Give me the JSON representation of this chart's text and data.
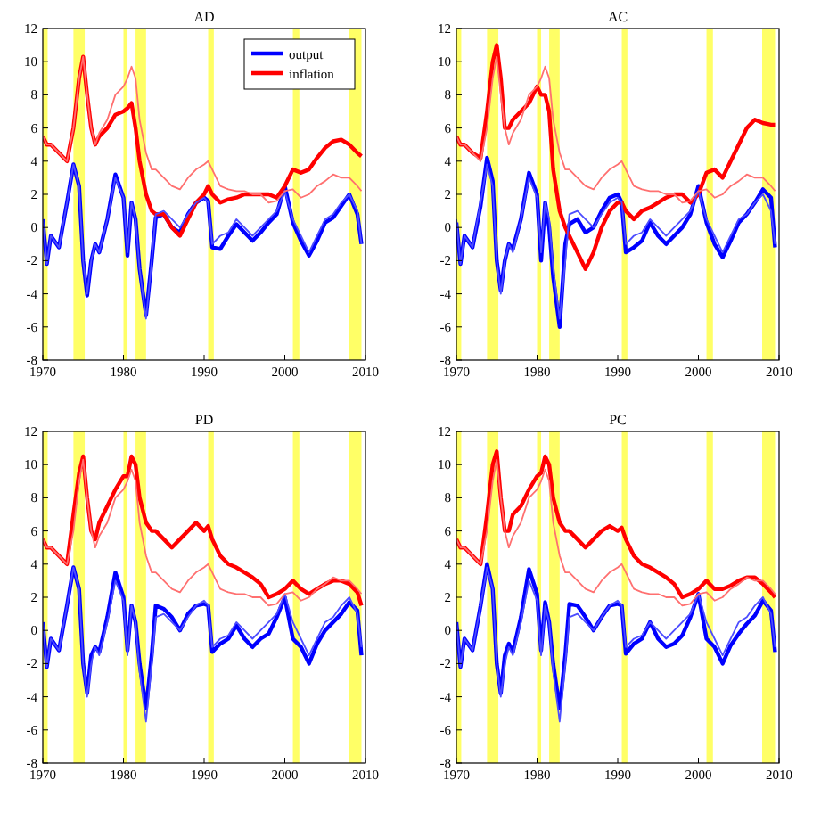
{
  "chart_data": [
    {
      "type": "line",
      "title": "AD",
      "legend": "top right",
      "xlim": [
        1970,
        2010
      ],
      "ylim": [
        -8,
        12
      ],
      "xticks": [
        1970,
        1980,
        1990,
        2000,
        2010
      ],
      "yticks": [
        -8,
        -6,
        -4,
        -2,
        0,
        2,
        4,
        6,
        8,
        10,
        12
      ],
      "x": [
        1970,
        1970.5,
        1971,
        1972,
        1973,
        1973.8,
        1974.5,
        1975,
        1975.5,
        1976,
        1976.5,
        1977,
        1978,
        1979,
        1980,
        1980.5,
        1981,
        1981.5,
        1982,
        1982.8,
        1983.5,
        1984,
        1985,
        1986,
        1987,
        1988,
        1989,
        1990,
        1990.5,
        1991,
        1992,
        1993,
        1994,
        1995,
        1996,
        1997,
        1998,
        1999,
        2000,
        2001,
        2002,
        2003,
        2004,
        2005,
        2006,
        2007,
        2008,
        2009,
        2009.5
      ],
      "bands": [
        {
          "axis": "x",
          "from": 1970,
          "to": 1970.6,
          "color": "#ffff66"
        },
        {
          "axis": "x",
          "from": 1973.8,
          "to": 1975.2,
          "color": "#ffff66"
        },
        {
          "axis": "x",
          "from": 1980,
          "to": 1980.5,
          "color": "#ffff66"
        },
        {
          "axis": "x",
          "from": 1981.5,
          "to": 1982.8,
          "color": "#ffff66"
        },
        {
          "axis": "x",
          "from": 1990.5,
          "to": 1991.2,
          "color": "#ffff66"
        },
        {
          "axis": "x",
          "from": 2001,
          "to": 2001.8,
          "color": "#ffff66"
        },
        {
          "axis": "x",
          "from": 2007.9,
          "to": 2009.5,
          "color": "#ffff66"
        }
      ],
      "series": [
        {
          "color": "#4d4dff",
          "values": [
            0.5,
            -2.2,
            -0.5,
            -1.2,
            1.5,
            3.8,
            2.5,
            -2,
            -4,
            -2,
            -1,
            -1.5,
            0.5,
            3,
            1.8,
            -1.5,
            1.5,
            0.5,
            -2.5,
            -5.5,
            -2,
            0.8,
            1,
            0.5,
            0,
            0.8,
            1.5,
            1.8,
            1.5,
            -1,
            -0.5,
            -0.3,
            0.5,
            0,
            -0.5,
            0,
            0.5,
            1,
            2.2,
            0.5,
            -0.5,
            -1.5,
            -0.5,
            0.5,
            0.8,
            1.5,
            2,
            1,
            -1
          ]
        },
        {
          "color": "#ff7070",
          "values": [
            5.5,
            5,
            5,
            4.5,
            4,
            6,
            9,
            10.3,
            8,
            6,
            5,
            5.7,
            6.5,
            8,
            8.5,
            9,
            9.7,
            9,
            6.5,
            4.5,
            3.5,
            3.5,
            3,
            2.5,
            2.3,
            3,
            3.5,
            3.8,
            4,
            3.5,
            2.5,
            2.3,
            2.2,
            2.2,
            2,
            2,
            1.5,
            1.6,
            2.2,
            2.3,
            1.8,
            2,
            2.5,
            2.8,
            3.2,
            3,
            3,
            2.5,
            2.2
          ]
        },
        {
          "name": "output",
          "color": "#0000ff",
          "values": [
            0.5,
            -2.2,
            -0.5,
            -1.2,
            1.5,
            3.8,
            2.5,
            -2,
            -4.1,
            -2,
            -1,
            -1.5,
            0.5,
            3.2,
            1.8,
            -1.7,
            1.5,
            0.5,
            -2.5,
            -5.3,
            -2,
            0.6,
            0.8,
            0,
            -0.3,
            0.8,
            1.5,
            1.8,
            1.6,
            -1.2,
            -1.3,
            -0.5,
            0.2,
            -0.3,
            -0.8,
            -0.3,
            0.3,
            0.8,
            2.5,
            0.3,
            -0.8,
            -1.7,
            -0.8,
            0.3,
            0.6,
            1.3,
            2,
            0.8,
            -1
          ]
        },
        {
          "name": "inflation",
          "color": "#ff0000",
          "values": [
            5.5,
            5,
            5,
            4.5,
            4,
            6,
            9,
            10.3,
            8,
            6,
            5,
            5.5,
            6,
            6.8,
            7,
            7.2,
            7.5,
            6,
            4,
            2,
            1,
            0.8,
            0.8,
            0,
            -0.5,
            0.5,
            1.5,
            2,
            2.5,
            2,
            1.5,
            1.7,
            1.8,
            2,
            2,
            2,
            2,
            1.8,
            2.5,
            3.5,
            3.3,
            3.5,
            4.2,
            4.8,
            5.2,
            5.3,
            5,
            4.5,
            4.3
          ]
        }
      ]
    },
    {
      "type": "line",
      "title": "AC",
      "xlim": [
        1970,
        2010
      ],
      "ylim": [
        -8,
        12
      ],
      "xticks": [
        1970,
        1980,
        1990,
        2000,
        2010
      ],
      "yticks": [
        -8,
        -6,
        -4,
        -2,
        0,
        2,
        4,
        6,
        8,
        10,
        12
      ],
      "x": [
        1970,
        1970.5,
        1971,
        1972,
        1973,
        1973.8,
        1974.5,
        1975,
        1975.5,
        1976,
        1976.5,
        1977,
        1978,
        1979,
        1980,
        1980.5,
        1981,
        1981.5,
        1982,
        1982.8,
        1983.5,
        1984,
        1985,
        1986,
        1987,
        1988,
        1989,
        1990,
        1990.5,
        1991,
        1992,
        1993,
        1994,
        1995,
        1996,
        1997,
        1998,
        1999,
        2000,
        2001,
        2002,
        2003,
        2004,
        2005,
        2006,
        2007,
        2008,
        2009,
        2009.5
      ],
      "bands": [
        {
          "axis": "x",
          "from": 1970,
          "to": 1970.6,
          "color": "#ffff66"
        },
        {
          "axis": "x",
          "from": 1973.8,
          "to": 1975.2,
          "color": "#ffff66"
        },
        {
          "axis": "x",
          "from": 1980,
          "to": 1980.5,
          "color": "#ffff66"
        },
        {
          "axis": "x",
          "from": 1981.5,
          "to": 1982.8,
          "color": "#ffff66"
        },
        {
          "axis": "x",
          "from": 1990.5,
          "to": 1991.2,
          "color": "#ffff66"
        },
        {
          "axis": "x",
          "from": 2001,
          "to": 2001.8,
          "color": "#ffff66"
        },
        {
          "axis": "x",
          "from": 2007.9,
          "to": 2009.5,
          "color": "#ffff66"
        }
      ],
      "series": [
        {
          "color": "#4d4dff",
          "values": [
            0.5,
            -2.2,
            -0.5,
            -1.2,
            1.5,
            3.8,
            2.5,
            -2,
            -4,
            -2,
            -1,
            -1.5,
            0.5,
            3,
            1.8,
            -1.5,
            1.5,
            0.5,
            -2.5,
            -5.5,
            -2,
            0.8,
            1,
            0.5,
            0,
            0.8,
            1.5,
            1.8,
            1.5,
            -1,
            -0.5,
            -0.3,
            0.5,
            0,
            -0.5,
            0,
            0.5,
            1,
            2.2,
            0.5,
            -0.5,
            -1.5,
            -0.5,
            0.5,
            0.8,
            1.5,
            2,
            1,
            -1
          ]
        },
        {
          "color": "#ff7070",
          "values": [
            5.5,
            5,
            5,
            4.5,
            4,
            6,
            9,
            10.3,
            8,
            6,
            5,
            5.7,
            6.5,
            8,
            8.5,
            9,
            9.7,
            9,
            6.5,
            4.5,
            3.5,
            3.5,
            3,
            2.5,
            2.3,
            3,
            3.5,
            3.8,
            4,
            3.5,
            2.5,
            2.3,
            2.2,
            2.2,
            2,
            2,
            1.5,
            1.6,
            2.2,
            2.3,
            1.8,
            2,
            2.5,
            2.8,
            3.2,
            3,
            3,
            2.5,
            2.2
          ]
        },
        {
          "color": "#0000ff",
          "values": [
            0.3,
            -2.2,
            -0.5,
            -1.2,
            1.3,
            4.2,
            2.8,
            -2,
            -3.8,
            -2,
            -1,
            -1.3,
            0.5,
            3.3,
            2,
            -2,
            1.5,
            0,
            -3,
            -6,
            -1,
            0.2,
            0.5,
            -0.3,
            0,
            1,
            1.8,
            2,
            1.5,
            -1.5,
            -1.2,
            -0.8,
            0.3,
            -0.5,
            -1,
            -0.5,
            0,
            0.8,
            2.5,
            0.3,
            -1,
            -1.8,
            -0.8,
            0.3,
            0.8,
            1.5,
            2.3,
            1.8,
            -1.2
          ]
        },
        {
          "color": "#ff0000",
          "values": [
            5.5,
            5,
            5,
            4.5,
            4.2,
            7,
            10,
            11,
            9,
            6,
            6,
            6.5,
            7,
            7.5,
            8.5,
            8,
            8,
            7,
            3.5,
            1,
            0,
            -0.5,
            -1.5,
            -2.5,
            -1.5,
            0,
            1,
            1.5,
            1.5,
            1,
            0.5,
            1,
            1.2,
            1.5,
            1.8,
            2,
            2,
            1.5,
            2,
            3.3,
            3.5,
            3,
            4,
            5,
            6,
            6.5,
            6.3,
            6.2,
            6.2
          ]
        }
      ]
    },
    {
      "type": "line",
      "title": "PD",
      "xlim": [
        1970,
        2010
      ],
      "ylim": [
        -8,
        12
      ],
      "xticks": [
        1970,
        1980,
        1990,
        2000,
        2010
      ],
      "yticks": [
        -8,
        -6,
        -4,
        -2,
        0,
        2,
        4,
        6,
        8,
        10,
        12
      ],
      "x": [
        1970,
        1970.5,
        1971,
        1972,
        1973,
        1973.8,
        1974.5,
        1975,
        1975.5,
        1976,
        1976.5,
        1977,
        1978,
        1979,
        1980,
        1980.5,
        1981,
        1981.5,
        1982,
        1982.8,
        1983.5,
        1984,
        1985,
        1986,
        1987,
        1988,
        1989,
        1990,
        1990.5,
        1991,
        1992,
        1993,
        1994,
        1995,
        1996,
        1997,
        1998,
        1999,
        2000,
        2001,
        2002,
        2003,
        2004,
        2005,
        2006,
        2007,
        2008,
        2009,
        2009.5
      ],
      "bands": [
        {
          "axis": "x",
          "from": 1970,
          "to": 1970.6,
          "color": "#ffff66"
        },
        {
          "axis": "x",
          "from": 1973.8,
          "to": 1975.2,
          "color": "#ffff66"
        },
        {
          "axis": "x",
          "from": 1980,
          "to": 1980.5,
          "color": "#ffff66"
        },
        {
          "axis": "x",
          "from": 1981.5,
          "to": 1982.8,
          "color": "#ffff66"
        },
        {
          "axis": "x",
          "from": 1990.5,
          "to": 1991.2,
          "color": "#ffff66"
        },
        {
          "axis": "x",
          "from": 2001,
          "to": 2001.8,
          "color": "#ffff66"
        },
        {
          "axis": "x",
          "from": 2007.9,
          "to": 2009.5,
          "color": "#ffff66"
        }
      ],
      "series": [
        {
          "color": "#4d4dff",
          "values": [
            0.5,
            -2.2,
            -0.5,
            -1.2,
            1.5,
            3.8,
            2.5,
            -2,
            -4,
            -2,
            -1,
            -1.5,
            0.5,
            3,
            1.8,
            -1.5,
            1.5,
            0.5,
            -2.5,
            -5.5,
            -2,
            0.8,
            1,
            0.5,
            0,
            0.8,
            1.5,
            1.8,
            1.5,
            -1,
            -0.5,
            -0.3,
            0.5,
            0,
            -0.5,
            0,
            0.5,
            1,
            2.2,
            0.5,
            -0.5,
            -1.5,
            -0.5,
            0.5,
            0.8,
            1.5,
            2,
            1,
            -1
          ]
        },
        {
          "color": "#ff7070",
          "values": [
            5.5,
            5,
            5,
            4.5,
            4,
            6,
            9,
            10.3,
            8,
            6,
            5,
            5.7,
            6.5,
            8,
            8.5,
            9,
            9.7,
            9,
            6.5,
            4.5,
            3.5,
            3.5,
            3,
            2.5,
            2.3,
            3,
            3.5,
            3.8,
            4,
            3.5,
            2.5,
            2.3,
            2.2,
            2.2,
            2,
            2,
            1.5,
            1.6,
            2.2,
            2.3,
            1.8,
            2,
            2.5,
            2.8,
            3.2,
            3,
            3,
            2.5,
            2.2
          ]
        },
        {
          "color": "#0000ff",
          "values": [
            0.5,
            -2.2,
            -0.5,
            -1.2,
            1.5,
            3.8,
            2.5,
            -2,
            -3.8,
            -1.5,
            -1,
            -1.3,
            0.8,
            3.5,
            2,
            -1.2,
            1.5,
            0.5,
            -2,
            -4.7,
            -1.5,
            1.5,
            1.3,
            0.8,
            0,
            1,
            1.5,
            1.6,
            1.5,
            -1.3,
            -0.8,
            -0.5,
            0.3,
            -0.5,
            -1,
            -0.5,
            -0.2,
            0.8,
            2,
            -0.5,
            -1,
            -2,
            -0.8,
            0,
            0.5,
            1,
            1.7,
            1.2,
            -1.5
          ]
        },
        {
          "color": "#ff0000",
          "values": [
            5.5,
            5,
            5,
            4.5,
            4,
            7,
            9.5,
            10.5,
            8,
            6,
            5.5,
            6.5,
            7.5,
            8.5,
            9.3,
            9.3,
            10.5,
            10,
            8,
            6.5,
            6,
            6,
            5.5,
            5,
            5.5,
            6,
            6.5,
            6,
            6.3,
            5.5,
            4.5,
            4,
            3.8,
            3.5,
            3.2,
            2.8,
            2,
            2.2,
            2.5,
            3,
            2.5,
            2.2,
            2.5,
            2.8,
            3,
            3,
            2.8,
            2.3,
            1.5
          ]
        }
      ]
    },
    {
      "type": "line",
      "title": "PC",
      "xlim": [
        1970,
        2010
      ],
      "ylim": [
        -8,
        12
      ],
      "xticks": [
        1970,
        1980,
        1990,
        2000,
        2010
      ],
      "yticks": [
        -8,
        -6,
        -4,
        -2,
        0,
        2,
        4,
        6,
        8,
        10,
        12
      ],
      "x": [
        1970,
        1970.5,
        1971,
        1972,
        1973,
        1973.8,
        1974.5,
        1975,
        1975.5,
        1976,
        1976.5,
        1977,
        1978,
        1979,
        1980,
        1980.5,
        1981,
        1981.5,
        1982,
        1982.8,
        1983.5,
        1984,
        1985,
        1986,
        1987,
        1988,
        1989,
        1990,
        1990.5,
        1991,
        1992,
        1993,
        1994,
        1995,
        1996,
        1997,
        1998,
        1999,
        2000,
        2001,
        2002,
        2003,
        2004,
        2005,
        2006,
        2007,
        2008,
        2009,
        2009.5
      ],
      "bands": [
        {
          "axis": "x",
          "from": 1970,
          "to": 1970.6,
          "color": "#ffff66"
        },
        {
          "axis": "x",
          "from": 1973.8,
          "to": 1975.2,
          "color": "#ffff66"
        },
        {
          "axis": "x",
          "from": 1980,
          "to": 1980.5,
          "color": "#ffff66"
        },
        {
          "axis": "x",
          "from": 1981.5,
          "to": 1982.8,
          "color": "#ffff66"
        },
        {
          "axis": "x",
          "from": 1990.5,
          "to": 1991.2,
          "color": "#ffff66"
        },
        {
          "axis": "x",
          "from": 2001,
          "to": 2001.8,
          "color": "#ffff66"
        },
        {
          "axis": "x",
          "from": 2007.9,
          "to": 2009.5,
          "color": "#ffff66"
        }
      ],
      "series": [
        {
          "color": "#4d4dff",
          "values": [
            0.5,
            -2.2,
            -0.5,
            -1.2,
            1.5,
            3.8,
            2.5,
            -2,
            -4,
            -2,
            -1,
            -1.5,
            0.5,
            3,
            1.8,
            -1.5,
            1.5,
            0.5,
            -2.5,
            -5.5,
            -2,
            0.8,
            1,
            0.5,
            0,
            0.8,
            1.5,
            1.8,
            1.5,
            -1,
            -0.5,
            -0.3,
            0.5,
            0,
            -0.5,
            0,
            0.5,
            1,
            2.2,
            0.5,
            -0.5,
            -1.5,
            -0.5,
            0.5,
            0.8,
            1.5,
            2,
            1,
            -1
          ]
        },
        {
          "color": "#ff7070",
          "values": [
            5.5,
            5,
            5,
            4.5,
            4,
            6,
            9,
            10.3,
            8,
            6,
            5,
            5.7,
            6.5,
            8,
            8.5,
            9,
            9.7,
            9,
            6.5,
            4.5,
            3.5,
            3.5,
            3,
            2.5,
            2.3,
            3,
            3.5,
            3.8,
            4,
            3.5,
            2.5,
            2.3,
            2.2,
            2.2,
            2,
            2,
            1.5,
            1.6,
            2.2,
            2.3,
            1.8,
            2,
            2.5,
            2.8,
            3.2,
            3,
            3,
            2.5,
            2.2
          ]
        },
        {
          "color": "#0000ff",
          "values": [
            0.5,
            -2.2,
            -0.5,
            -1.2,
            1.5,
            4,
            2.5,
            -2,
            -3.8,
            -1.5,
            -0.8,
            -1.3,
            0.8,
            3.7,
            2.2,
            -1.2,
            1.7,
            0.5,
            -2,
            -4.7,
            -1.5,
            1.6,
            1.5,
            0.8,
            0,
            0.8,
            1.5,
            1.6,
            1.5,
            -1.4,
            -0.8,
            -0.5,
            0.5,
            -0.5,
            -1,
            -0.8,
            -0.3,
            0.8,
            2.2,
            -0.5,
            -1,
            -2,
            -0.9,
            -0.2,
            0.4,
            0.9,
            1.8,
            1.2,
            -1.3
          ]
        },
        {
          "color": "#ff0000",
          "values": [
            5.5,
            5,
            5,
            4.5,
            4,
            7,
            10,
            10.8,
            8,
            6,
            6,
            7,
            7.5,
            8.5,
            9.3,
            9.5,
            10.5,
            10,
            8,
            6.5,
            6,
            6,
            5.5,
            5,
            5.5,
            6,
            6.3,
            6,
            6.2,
            5.5,
            4.5,
            4,
            3.8,
            3.5,
            3.2,
            2.8,
            2,
            2.2,
            2.5,
            3,
            2.5,
            2.5,
            2.7,
            3,
            3.2,
            3.2,
            2.8,
            2.3,
            2
          ]
        }
      ]
    }
  ]
}
